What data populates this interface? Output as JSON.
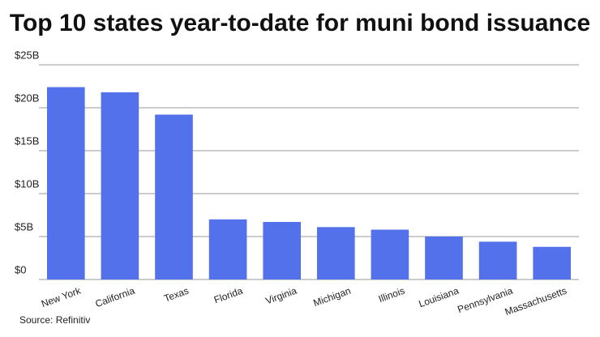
{
  "chart_data": {
    "type": "bar",
    "title": "Top 10 states year-to-date for muni bond issuance",
    "categories": [
      "New York",
      "California",
      "Texas",
      "Florida",
      "Virginia",
      "Michigan",
      "Illinois",
      "Louisiana",
      "Pennsylvania",
      "Massachusetts"
    ],
    "values": [
      22.4,
      21.8,
      19.2,
      7.0,
      6.7,
      6.1,
      5.8,
      5.0,
      4.4,
      3.8
    ],
    "color": "#5271ea",
    "ylim": [
      0,
      25
    ],
    "yticks": [
      {
        "value": 0,
        "label": "$0"
      },
      {
        "value": 5,
        "label": "$5B"
      },
      {
        "value": 10,
        "label": "$10B"
      },
      {
        "value": 15,
        "label": "$15B"
      },
      {
        "value": 20,
        "label": "$20B"
      },
      {
        "value": 25,
        "label": "$25B"
      }
    ],
    "grid": true,
    "source": "Source: Refinitiv"
  }
}
